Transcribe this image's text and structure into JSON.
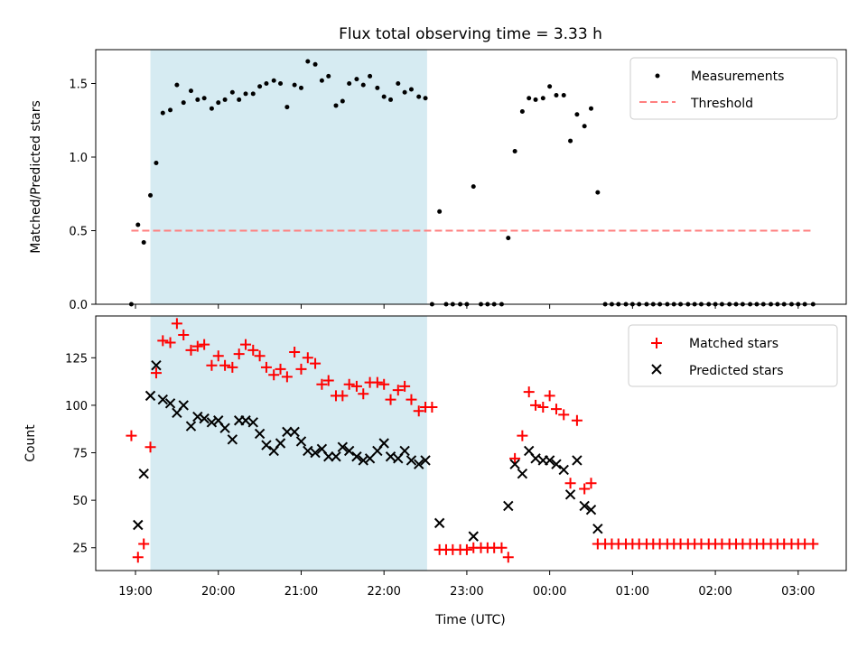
{
  "chart_data": [
    {
      "type": "scatter",
      "panel": "top",
      "title": "Flux total observing time = 3.33 h",
      "xlabel": "",
      "ylabel": "Matched/Predicted stars",
      "xlim": [
        -0.48,
        8.58
      ],
      "ylim": [
        0,
        1.73
      ],
      "x_tick_values": [
        0,
        1,
        2,
        3,
        4,
        5,
        6,
        7,
        8
      ],
      "y_tick_values": [
        0.0,
        0.5,
        1.0,
        1.5
      ],
      "y_tick_labels": [
        "0.0",
        "0.5",
        "1.0",
        "1.5"
      ],
      "shaded_interval": {
        "x": [
          0.18,
          3.52
        ],
        "color": "#add8e6"
      },
      "threshold": {
        "name": "Threshold",
        "value": 0.5,
        "x": [
          -0.05,
          8.18
        ],
        "color": "#ff7f7f"
      },
      "legend": {
        "position": "top-right",
        "entries": [
          "Measurements",
          "Threshold"
        ]
      },
      "series": [
        {
          "name": "Measurements",
          "color": "#000000",
          "x": [
            -0.05,
            0.03,
            0.1,
            0.18,
            0.25,
            0.33,
            0.42,
            0.5,
            0.58,
            0.67,
            0.75,
            0.83,
            0.92,
            1.0,
            1.08,
            1.17,
            1.25,
            1.33,
            1.42,
            1.5,
            1.58,
            1.67,
            1.75,
            1.83,
            1.92,
            2.0,
            2.08,
            2.17,
            2.25,
            2.33,
            2.42,
            2.5,
            2.58,
            2.67,
            2.75,
            2.83,
            2.92,
            3.0,
            3.08,
            3.17,
            3.25,
            3.33,
            3.42,
            3.5,
            3.58,
            3.67,
            3.75,
            3.83,
            3.92,
            4.0,
            4.08,
            4.17,
            4.25,
            4.33,
            4.42,
            4.5,
            4.58,
            4.67,
            4.75,
            4.83,
            4.92,
            5.0,
            5.08,
            5.17,
            5.25,
            5.33,
            5.42,
            5.5,
            5.58,
            5.67,
            5.75,
            5.83,
            5.92,
            6.0,
            6.08,
            6.17,
            6.25,
            6.33,
            6.42,
            6.5,
            6.58,
            6.67,
            6.75,
            6.83,
            6.92,
            7.0,
            7.08,
            7.17,
            7.25,
            7.33,
            7.42,
            7.5,
            7.58,
            7.67,
            7.75,
            7.83,
            7.92,
            8.0,
            8.08,
            8.18
          ],
          "y": [
            0.0,
            0.54,
            0.42,
            0.74,
            0.96,
            1.3,
            1.32,
            1.49,
            1.37,
            1.45,
            1.39,
            1.4,
            1.33,
            1.37,
            1.39,
            1.44,
            1.39,
            1.43,
            1.43,
            1.48,
            1.5,
            1.52,
            1.5,
            1.34,
            1.49,
            1.47,
            1.65,
            1.63,
            1.52,
            1.55,
            1.35,
            1.38,
            1.5,
            1.53,
            1.49,
            1.55,
            1.47,
            1.41,
            1.39,
            1.5,
            1.44,
            1.46,
            1.41,
            1.4,
            0.0,
            0.63,
            0.0,
            0.0,
            0.0,
            0.0,
            0.8,
            0.0,
            0.0,
            0.0,
            0.0,
            0.45,
            1.04,
            1.31,
            1.4,
            1.39,
            1.4,
            1.48,
            1.42,
            1.42,
            1.11,
            1.29,
            1.21,
            1.33,
            0.76,
            0.0,
            0.0,
            0.0,
            0.0,
            0.0,
            0.0,
            0.0,
            0.0,
            0.0,
            0.0,
            0.0,
            0.0,
            0.0,
            0.0,
            0.0,
            0.0,
            0.0,
            0.0,
            0.0,
            0.0,
            0.0,
            0.0,
            0.0,
            0.0,
            0.0,
            0.0,
            0.0,
            0.0,
            0.0,
            0.0,
            0.0
          ]
        }
      ]
    },
    {
      "type": "scatter",
      "panel": "bottom",
      "title": "",
      "xlabel": "Time (UTC)",
      "ylabel": "Count",
      "xlim": [
        -0.48,
        8.58
      ],
      "ylim": [
        13,
        147
      ],
      "x_tick_values": [
        0,
        1,
        2,
        3,
        4,
        5,
        6,
        7,
        8
      ],
      "x_tick_labels": [
        "19:00",
        "20:00",
        "21:00",
        "22:00",
        "23:00",
        "00:00",
        "01:00",
        "02:00",
        "03:00"
      ],
      "y_tick_values": [
        25,
        50,
        75,
        100,
        125
      ],
      "y_tick_labels": [
        "25",
        "50",
        "75",
        "100",
        "125"
      ],
      "shaded_interval": {
        "x": [
          0.18,
          3.52
        ],
        "color": "#add8e6"
      },
      "legend": {
        "position": "top-right",
        "entries": [
          "Matched stars",
          "Predicted stars"
        ]
      },
      "series": [
        {
          "name": "Matched stars",
          "color": "#ff0000",
          "marker": "+",
          "x": [
            -0.05,
            0.03,
            0.1,
            0.18,
            0.25,
            0.33,
            0.42,
            0.5,
            0.58,
            0.67,
            0.75,
            0.83,
            0.92,
            1.0,
            1.08,
            1.17,
            1.25,
            1.33,
            1.42,
            1.5,
            1.58,
            1.67,
            1.75,
            1.83,
            1.92,
            2.0,
            2.08,
            2.17,
            2.25,
            2.33,
            2.42,
            2.5,
            2.58,
            2.67,
            2.75,
            2.83,
            2.92,
            3.0,
            3.08,
            3.17,
            3.25,
            3.33,
            3.42,
            3.5,
            3.58,
            3.67,
            3.75,
            3.83,
            3.92,
            4.0,
            4.08,
            4.17,
            4.25,
            4.33,
            4.42,
            4.5,
            4.58,
            4.67,
            4.75,
            4.83,
            4.92,
            5.0,
            5.08,
            5.17,
            5.25,
            5.33,
            5.42,
            5.5,
            5.58,
            5.67,
            5.75,
            5.83,
            5.92,
            6.0,
            6.08,
            6.17,
            6.25,
            6.33,
            6.42,
            6.5,
            6.58,
            6.67,
            6.75,
            6.83,
            6.92,
            7.0,
            7.08,
            7.17,
            7.25,
            7.33,
            7.42,
            7.5,
            7.58,
            7.67,
            7.75,
            7.83,
            7.92,
            8.0,
            8.08,
            8.18
          ],
          "y": [
            84,
            20,
            27,
            78,
            117,
            134,
            133,
            143,
            137,
            129,
            131,
            132,
            121,
            126,
            121,
            120,
            127,
            132,
            129,
            126,
            120,
            116,
            119,
            115,
            128,
            119,
            125,
            122,
            111,
            113,
            105,
            105,
            111,
            110,
            106,
            112,
            112,
            111,
            103,
            108,
            110,
            103,
            97,
            99,
            99,
            24,
            24,
            24,
            24,
            24,
            25,
            25,
            25,
            25,
            25,
            20,
            72,
            84,
            107,
            100,
            99,
            105,
            98,
            95,
            59,
            92,
            56,
            59,
            27,
            27,
            27,
            27,
            27,
            27,
            27,
            27,
            27,
            27,
            27,
            27,
            27,
            27,
            27,
            27,
            27,
            27,
            27,
            27,
            27,
            27,
            27,
            27,
            27,
            27,
            27,
            27,
            27,
            27,
            27,
            27
          ]
        },
        {
          "name": "Predicted stars",
          "color": "#000000",
          "marker": "x",
          "x": [
            0.03,
            0.1,
            0.18,
            0.25,
            0.33,
            0.42,
            0.5,
            0.58,
            0.67,
            0.75,
            0.83,
            0.92,
            1.0,
            1.08,
            1.17,
            1.25,
            1.33,
            1.42,
            1.5,
            1.58,
            1.67,
            1.75,
            1.83,
            1.92,
            2.0,
            2.08,
            2.17,
            2.25,
            2.33,
            2.42,
            2.5,
            2.58,
            2.67,
            2.75,
            2.83,
            2.92,
            3.0,
            3.08,
            3.17,
            3.25,
            3.33,
            3.42,
            3.5,
            3.67,
            4.08,
            4.5,
            4.58,
            4.67,
            4.75,
            4.83,
            4.92,
            5.0,
            5.08,
            5.17,
            5.25,
            5.33,
            5.42,
            5.5,
            5.58
          ],
          "y": [
            37,
            64,
            105,
            121,
            103,
            101,
            96,
            100,
            89,
            94,
            93,
            91,
            92,
            88,
            82,
            92,
            92,
            91,
            85,
            79,
            76,
            80,
            86,
            86,
            81,
            76,
            75,
            77,
            73,
            73,
            78,
            76,
            73,
            71,
            72,
            76,
            80,
            73,
            72,
            76,
            71,
            69,
            71,
            38,
            31,
            47,
            69,
            64,
            76,
            72,
            71,
            71,
            69,
            66,
            53,
            71,
            47,
            45,
            35
          ]
        }
      ]
    }
  ]
}
